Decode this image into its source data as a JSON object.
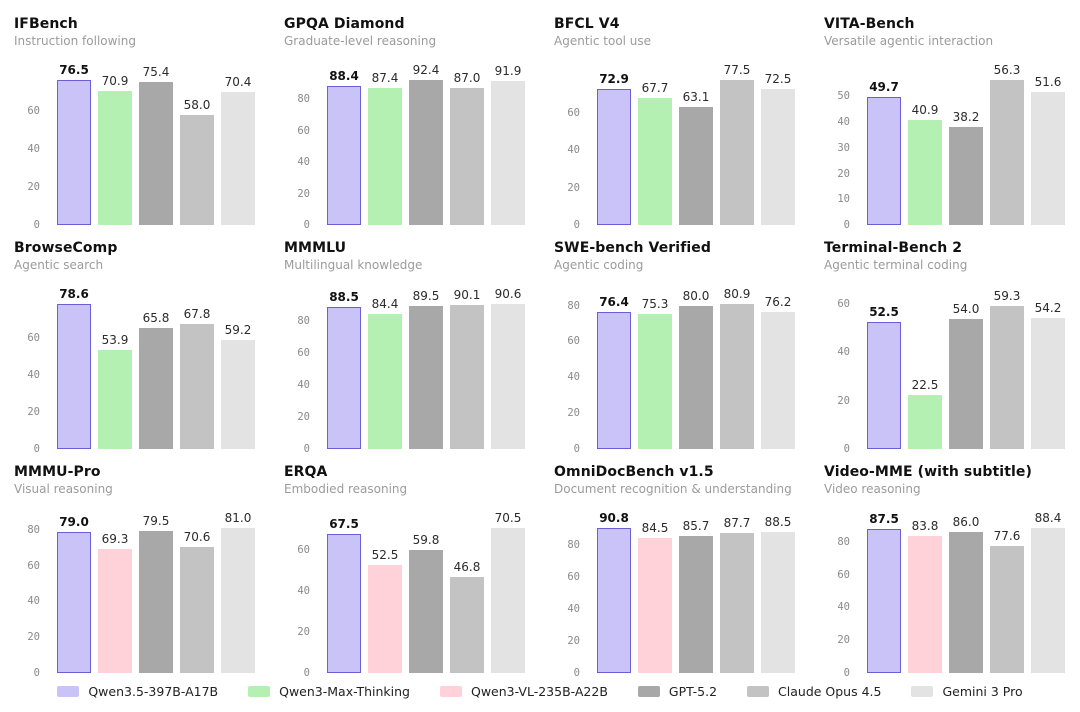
{
  "colors": {
    "purple": "#c9c3f7",
    "purple_border": "#6a5fd6",
    "green": "#b4f0b2",
    "pink": "#ffd1d9",
    "gray_dark": "#a8a8a8",
    "gray_mid": "#c3c3c3",
    "gray_light": "#e3e3e3",
    "title": "#111111",
    "subtitle": "#9b9b9b",
    "tick": "#8a8a8a",
    "value": "#2b2b2b"
  },
  "legend": {
    "items": [
      {
        "label": "Qwen3.5-397B-A17B",
        "color": "purple"
      },
      {
        "label": "Qwen3-Max-Thinking",
        "color": "green"
      },
      {
        "label": "Qwen3-VL-235B-A22B",
        "color": "pink"
      },
      {
        "label": "GPT-5.2",
        "color": "gray_dark"
      },
      {
        "label": "Claude Opus 4.5",
        "color": "gray_mid"
      },
      {
        "label": "Gemini 3 Pro",
        "color": "gray_light"
      }
    ]
  },
  "chart_data": [
    {
      "type": "bar",
      "title": "IFBench",
      "subtitle": "Instruction following",
      "categories": [
        "Qwen3.5-397B-A17B",
        "Qwen3-Max-Thinking",
        "GPT-5.2",
        "Claude Opus 4.5",
        "Gemini 3 Pro"
      ],
      "values": [
        76.5,
        70.9,
        75.4,
        58.0,
        70.4
      ],
      "bar_colors": [
        "purple",
        "green",
        "gray_dark",
        "gray_mid",
        "gray_light"
      ],
      "yticks": [
        0,
        20,
        40,
        60
      ],
      "ylim": [
        0,
        76.5
      ],
      "grid": false,
      "highlight_index": 0
    },
    {
      "type": "bar",
      "title": "GPQA Diamond",
      "subtitle": "Graduate-level reasoning",
      "categories": [
        "Qwen3.5-397B-A17B",
        "Qwen3-Max-Thinking",
        "GPT-5.2",
        "Claude Opus 4.5",
        "Gemini 3 Pro"
      ],
      "values": [
        88.4,
        87.4,
        92.4,
        87.0,
        91.9
      ],
      "bar_colors": [
        "purple",
        "green",
        "gray_dark",
        "gray_mid",
        "gray_light"
      ],
      "yticks": [
        0,
        20,
        40,
        60,
        80
      ],
      "ylim": [
        0,
        92.4
      ],
      "grid": false,
      "highlight_index": 0
    },
    {
      "type": "bar",
      "title": "BFCL V4",
      "subtitle": "Agentic tool use",
      "categories": [
        "Qwen3.5-397B-A17B",
        "Qwen3-Max-Thinking",
        "GPT-5.2",
        "Claude Opus 4.5",
        "Gemini 3 Pro"
      ],
      "values": [
        72.9,
        67.7,
        63.1,
        77.5,
        72.5
      ],
      "bar_colors": [
        "purple",
        "green",
        "gray_dark",
        "gray_mid",
        "gray_light"
      ],
      "yticks": [
        0,
        20,
        40,
        60
      ],
      "ylim": [
        0,
        77.5
      ],
      "grid": false,
      "highlight_index": 0
    },
    {
      "type": "bar",
      "title": "VITA-Bench",
      "subtitle": "Versatile agentic interaction",
      "categories": [
        "Qwen3.5-397B-A17B",
        "Qwen3-Max-Thinking",
        "GPT-5.2",
        "Claude Opus 4.5",
        "Gemini 3 Pro"
      ],
      "values": [
        49.7,
        40.9,
        38.2,
        56.3,
        51.6
      ],
      "bar_colors": [
        "purple",
        "green",
        "gray_dark",
        "gray_mid",
        "gray_light"
      ],
      "yticks": [
        0,
        10,
        20,
        30,
        40,
        50
      ],
      "ylim": [
        0,
        56.3
      ],
      "grid": false,
      "highlight_index": 0
    },
    {
      "type": "bar",
      "title": "BrowseComp",
      "subtitle": "Agentic search",
      "categories": [
        "Qwen3.5-397B-A17B",
        "Qwen3-Max-Thinking",
        "GPT-5.2",
        "Claude Opus 4.5",
        "Gemini 3 Pro"
      ],
      "values": [
        78.6,
        53.9,
        65.8,
        67.8,
        59.2
      ],
      "bar_colors": [
        "purple",
        "green",
        "gray_dark",
        "gray_mid",
        "gray_light"
      ],
      "yticks": [
        0,
        20,
        40,
        60
      ],
      "ylim": [
        0,
        78.6
      ],
      "grid": false,
      "highlight_index": 0
    },
    {
      "type": "bar",
      "title": "MMMLU",
      "subtitle": "Multilingual knowledge",
      "categories": [
        "Qwen3.5-397B-A17B",
        "Qwen3-Max-Thinking",
        "GPT-5.2",
        "Claude Opus 4.5",
        "Gemini 3 Pro"
      ],
      "values": [
        88.5,
        84.4,
        89.5,
        90.1,
        90.6
      ],
      "bar_colors": [
        "purple",
        "green",
        "gray_dark",
        "gray_mid",
        "gray_light"
      ],
      "yticks": [
        0,
        20,
        40,
        60,
        80
      ],
      "ylim": [
        0,
        90.6
      ],
      "grid": false,
      "highlight_index": 0
    },
    {
      "type": "bar",
      "title": "SWE-bench Verified",
      "subtitle": "Agentic coding",
      "categories": [
        "Qwen3.5-397B-A17B",
        "Qwen3-Max-Thinking",
        "GPT-5.2",
        "Claude Opus 4.5",
        "Gemini 3 Pro"
      ],
      "values": [
        76.4,
        75.3,
        80.0,
        80.9,
        76.2
      ],
      "bar_colors": [
        "purple",
        "green",
        "gray_dark",
        "gray_mid",
        "gray_light"
      ],
      "yticks": [
        0,
        20,
        40,
        60,
        80
      ],
      "ylim": [
        0,
        80.9
      ],
      "grid": false,
      "highlight_index": 0
    },
    {
      "type": "bar",
      "title": "Terminal-Bench 2",
      "subtitle": "Agentic terminal coding",
      "categories": [
        "Qwen3.5-397B-A17B",
        "Qwen3-Max-Thinking",
        "GPT-5.2",
        "Claude Opus 4.5",
        "Gemini 3 Pro"
      ],
      "values": [
        52.5,
        22.5,
        54.0,
        59.3,
        54.2
      ],
      "bar_colors": [
        "purple",
        "green",
        "gray_dark",
        "gray_mid",
        "gray_light"
      ],
      "yticks": [
        0,
        20,
        40,
        60
      ],
      "ylim": [
        0,
        60
      ],
      "grid": false,
      "highlight_index": 0
    },
    {
      "type": "bar",
      "title": "MMMU-Pro",
      "subtitle": "Visual reasoning",
      "categories": [
        "Qwen3.5-397B-A17B",
        "Qwen3-VL-235B-A22B",
        "GPT-5.2",
        "Claude Opus 4.5",
        "Gemini 3 Pro"
      ],
      "values": [
        79.0,
        69.3,
        79.5,
        70.6,
        81.0
      ],
      "bar_colors": [
        "purple",
        "pink",
        "gray_dark",
        "gray_mid",
        "gray_light"
      ],
      "yticks": [
        0,
        20,
        40,
        60,
        80
      ],
      "ylim": [
        0,
        81.0
      ],
      "grid": false,
      "highlight_index": 0
    },
    {
      "type": "bar",
      "title": "ERQA",
      "subtitle": "Embodied reasoning",
      "categories": [
        "Qwen3.5-397B-A17B",
        "Qwen3-VL-235B-A22B",
        "GPT-5.2",
        "Claude Opus 4.5",
        "Gemini 3 Pro"
      ],
      "values": [
        67.5,
        52.5,
        59.8,
        46.8,
        70.5
      ],
      "bar_colors": [
        "purple",
        "pink",
        "gray_dark",
        "gray_mid",
        "gray_light"
      ],
      "yticks": [
        0,
        20,
        40,
        60
      ],
      "ylim": [
        0,
        70.5
      ],
      "grid": false,
      "highlight_index": 0
    },
    {
      "type": "bar",
      "title": "OmniDocBench v1.5",
      "subtitle": "Document recognition & understanding",
      "categories": [
        "Qwen3.5-397B-A17B",
        "Qwen3-VL-235B-A22B",
        "GPT-5.2",
        "Claude Opus 4.5",
        "Gemini 3 Pro"
      ],
      "values": [
        90.8,
        84.5,
        85.7,
        87.7,
        88.5
      ],
      "bar_colors": [
        "purple",
        "pink",
        "gray_dark",
        "gray_mid",
        "gray_light"
      ],
      "yticks": [
        0,
        20,
        40,
        60,
        80
      ],
      "ylim": [
        0,
        90.8
      ],
      "grid": false,
      "highlight_index": 0
    },
    {
      "type": "bar",
      "title": "Video-MME (with subtitle)",
      "subtitle": "Video reasoning",
      "categories": [
        "Qwen3.5-397B-A17B",
        "Qwen3-VL-235B-A22B",
        "GPT-5.2",
        "Claude Opus 4.5",
        "Gemini 3 Pro"
      ],
      "values": [
        87.5,
        83.8,
        86.0,
        77.6,
        88.4
      ],
      "bar_colors": [
        "purple",
        "pink",
        "gray_dark",
        "gray_mid",
        "gray_light"
      ],
      "yticks": [
        0,
        20,
        40,
        60,
        80
      ],
      "ylim": [
        0,
        88.4
      ],
      "grid": false,
      "highlight_index": 0
    }
  ]
}
